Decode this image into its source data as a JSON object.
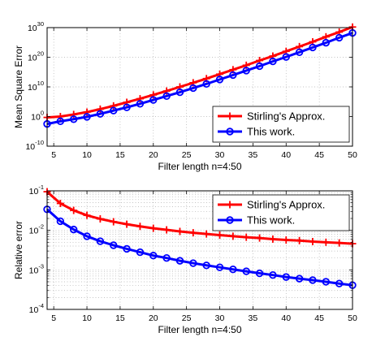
{
  "chart_data": [
    {
      "type": "line",
      "scale": "log-y",
      "grid": true,
      "xlabel": "Filter length n=4:50",
      "ylabel": "Mean Square Error",
      "xlim": [
        4,
        50
      ],
      "ylim_exp": [
        -10,
        30
      ],
      "xticks": [
        5,
        10,
        15,
        20,
        25,
        30,
        35,
        40,
        45,
        50
      ],
      "yticks_exp": [
        -10,
        0,
        10,
        20,
        30
      ],
      "legend_position": "bottom-right",
      "x": [
        4,
        6,
        8,
        10,
        12,
        14,
        16,
        18,
        20,
        22,
        24,
        26,
        28,
        30,
        32,
        34,
        36,
        38,
        40,
        42,
        44,
        46,
        48,
        50
      ],
      "series": [
        {
          "name": "Stirling's Approx.",
          "color": "#ff0000",
          "marker": "plus",
          "log10_values": [
            -0.3,
            0.0,
            0.7,
            1.5,
            2.5,
            3.6,
            4.8,
            6.0,
            7.3,
            8.6,
            10.0,
            11.4,
            12.8,
            14.3,
            15.8,
            17.3,
            18.9,
            20.4,
            22.0,
            23.6,
            25.2,
            26.9,
            28.5,
            30.2
          ]
        },
        {
          "name": "This work.",
          "color": "#0000ff",
          "marker": "circle",
          "log10_values": [
            -2.5,
            -1.6,
            -0.9,
            -0.1,
            0.9,
            2.0,
            3.1,
            4.3,
            5.6,
            6.9,
            8.2,
            9.6,
            11.0,
            12.5,
            14.0,
            15.5,
            17.0,
            18.6,
            20.1,
            21.7,
            23.3,
            24.9,
            26.6,
            28.2
          ]
        }
      ]
    },
    {
      "type": "line",
      "scale": "log-y",
      "grid": true,
      "xlabel": "Filter length n=4:50",
      "ylabel": "Relative error",
      "xlim": [
        4,
        50
      ],
      "ylim_exp": [
        -4,
        -1
      ],
      "xticks": [
        5,
        10,
        15,
        20,
        25,
        30,
        35,
        40,
        45,
        50
      ],
      "yticks_exp": [
        -4,
        -3,
        -2,
        -1
      ],
      "legend_position": "top-right",
      "x": [
        4,
        6,
        8,
        10,
        12,
        14,
        16,
        18,
        20,
        22,
        24,
        26,
        28,
        30,
        32,
        34,
        36,
        38,
        40,
        42,
        44,
        46,
        48,
        50
      ],
      "series": [
        {
          "name": "Stirling's Approx.",
          "color": "#ff0000",
          "marker": "plus",
          "values": [
            0.095,
            0.048,
            0.032,
            0.024,
            0.0195,
            0.0165,
            0.0143,
            0.0126,
            0.0113,
            0.0103,
            0.0094,
            0.0087,
            0.0081,
            0.0076,
            0.0071,
            0.0067,
            0.0064,
            0.006,
            0.0057,
            0.0055,
            0.0052,
            0.005,
            0.0048,
            0.0046
          ]
        },
        {
          "name": "This work.",
          "color": "#0000ff",
          "marker": "circle",
          "values": [
            0.034,
            0.017,
            0.0105,
            0.0071,
            0.0053,
            0.0042,
            0.0034,
            0.0028,
            0.0023,
            0.002,
            0.0017,
            0.00148,
            0.0013,
            0.00116,
            0.00103,
            0.00092,
            0.00082,
            0.00074,
            0.00066,
            0.0006,
            0.00055,
            0.0005,
            0.00045,
            0.00041
          ]
        }
      ]
    }
  ]
}
